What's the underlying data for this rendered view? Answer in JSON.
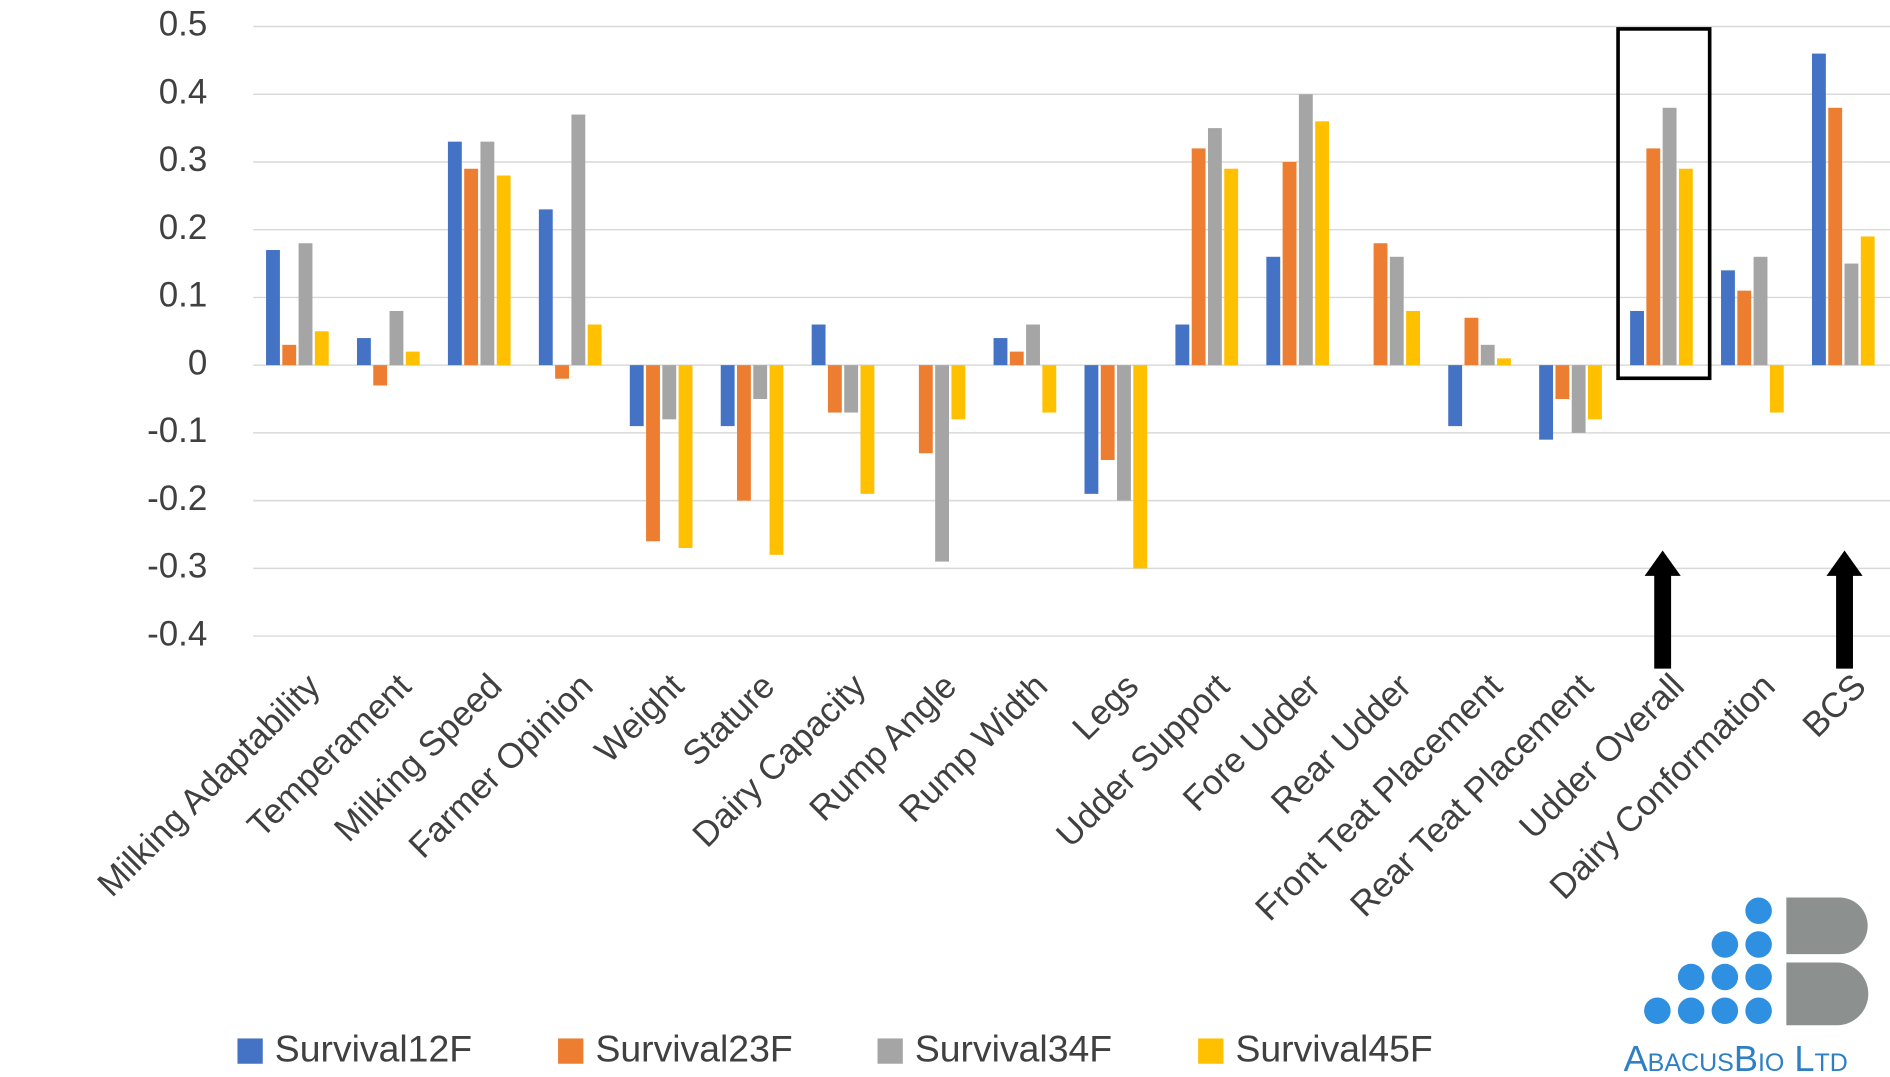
{
  "chart_data": {
    "type": "bar",
    "categories": [
      "Milking Adaptability",
      "Temperament",
      "Milking Speed",
      "Farmer Opinion",
      "Weight",
      "Stature",
      "Dairy Capacity",
      "Rump Angle",
      "Rump Width",
      "Legs",
      "Udder Support",
      "Fore Udder",
      "Rear Udder",
      "Front Teat Placement",
      "Rear Teat Placement",
      "Udder Overall",
      "Dairy Conformation",
      "BCS"
    ],
    "series": [
      {
        "name": "Survival12F",
        "color": "#4472c4",
        "values": [
          0.17,
          0.04,
          0.33,
          0.23,
          -0.09,
          -0.09,
          0.06,
          0,
          0.04,
          -0.19,
          0.06,
          0.16,
          0,
          -0.09,
          -0.11,
          0.08,
          0.14,
          0.46
        ]
      },
      {
        "name": "Survival23F",
        "color": "#ed7d31",
        "values": [
          0.03,
          -0.03,
          0.29,
          -0.02,
          -0.26,
          -0.2,
          -0.07,
          -0.13,
          0.02,
          -0.14,
          0.32,
          0.3,
          0.18,
          0.07,
          -0.05,
          0.32,
          0.11,
          0.38
        ]
      },
      {
        "name": "Survival34F",
        "color": "#a5a5a5",
        "values": [
          0.18,
          0.08,
          0.33,
          0.37,
          -0.08,
          -0.05,
          -0.07,
          -0.29,
          0.06,
          -0.2,
          0.35,
          0.4,
          0.16,
          0.03,
          -0.1,
          0.38,
          0.16,
          0.15
        ]
      },
      {
        "name": "Survival45F",
        "color": "#ffc000",
        "values": [
          0.05,
          0.02,
          0.28,
          0.06,
          -0.27,
          -0.28,
          -0.19,
          -0.08,
          -0.07,
          -0.3,
          0.29,
          0.36,
          0.08,
          0.01,
          -0.08,
          0.29,
          -0.07,
          0.19
        ]
      }
    ],
    "ylim": [
      -0.4,
      0.5
    ],
    "yticks": [
      -0.4,
      -0.3,
      -0.2,
      -0.1,
      0,
      0.1,
      0.2,
      0.3,
      0.4,
      0.5
    ],
    "grid": true,
    "legend": "bottom"
  },
  "logo": "AbacusBio Ltd"
}
